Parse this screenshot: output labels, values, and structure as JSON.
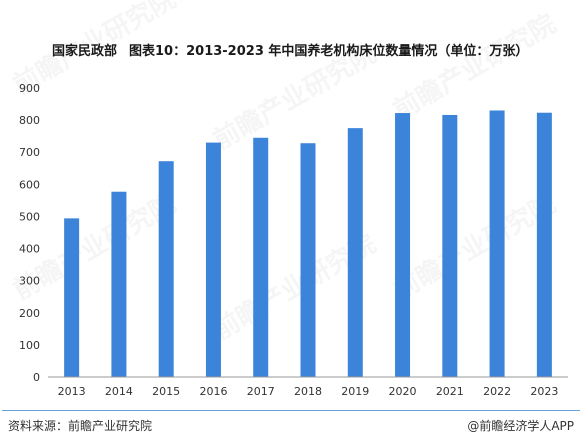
{
  "header": {
    "source_org": "国家民政部",
    "title": "图表10：2013-2023 年中国养老机构床位数量情况（单位：万张）"
  },
  "footer": {
    "source": "资料来源：前瞻产业研究院",
    "brand": "@前瞻经济学人APP"
  },
  "watermark": {
    "text": "前瞻产业研究院"
  },
  "chart_data": {
    "type": "bar",
    "categories": [
      "2013",
      "2014",
      "2015",
      "2016",
      "2017",
      "2018",
      "2019",
      "2020",
      "2021",
      "2022",
      "2023"
    ],
    "values": [
      494,
      577,
      672,
      730,
      745,
      728,
      775,
      822,
      816,
      830,
      823
    ],
    "ylim": [
      0,
      900
    ],
    "yticks": [
      0,
      100,
      200,
      300,
      400,
      500,
      600,
      700,
      800,
      900
    ],
    "grid": false,
    "legend": "none",
    "bar_color": "#3b84d9"
  }
}
